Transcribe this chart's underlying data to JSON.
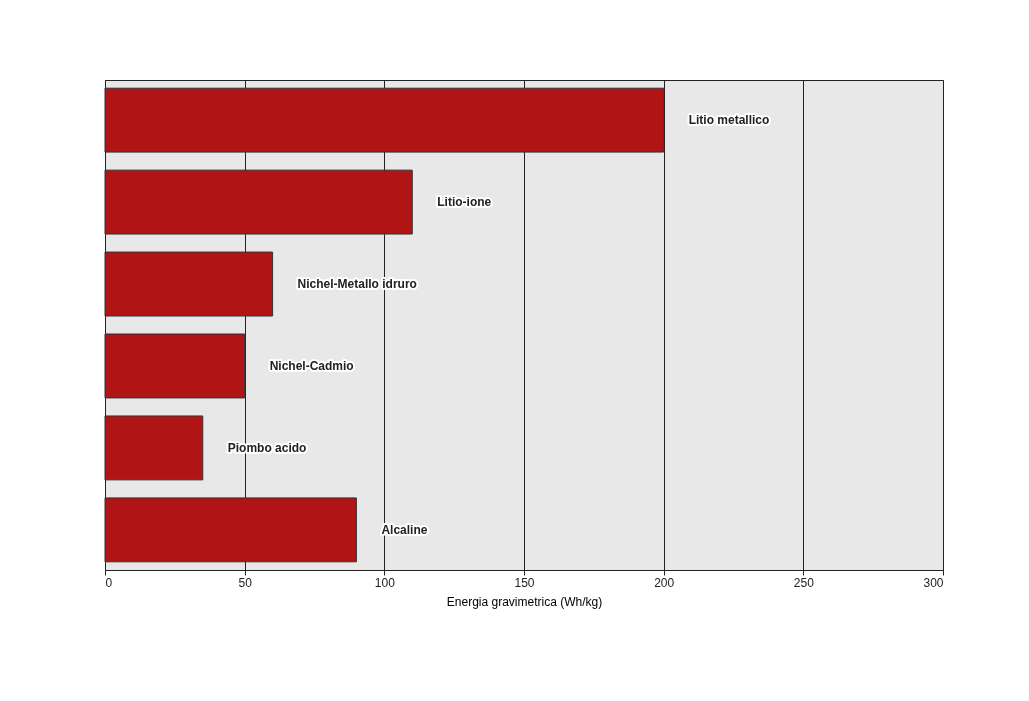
{
  "chart_data": {
    "type": "bar",
    "orientation": "horizontal",
    "xlabel": "Energia gravimetrica (Wh/kg)",
    "categories": [
      "Litio metallico",
      "Litio-ione",
      "Nichel-Metallo idruro",
      "Nichel-Cadmio",
      "Piombo acido",
      "Alcaline"
    ],
    "values": [
      200,
      110,
      60,
      50,
      35,
      90
    ],
    "color": "#b01414",
    "xlim": [
      0,
      300
    ],
    "xticks": [
      0,
      50,
      100,
      150,
      200,
      250,
      300
    ],
    "grid": "x",
    "tick_labels": "x"
  }
}
